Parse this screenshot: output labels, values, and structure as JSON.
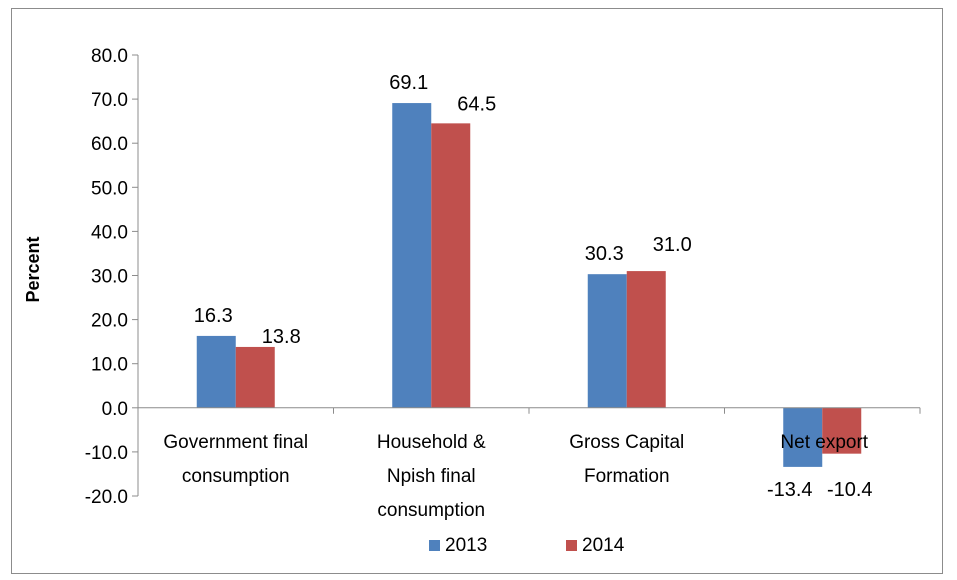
{
  "chart_data": {
    "type": "bar",
    "title": "",
    "xlabel": "",
    "ylabel": "Percent",
    "ylim": [
      -20,
      80
    ],
    "yticks": [
      "80.0",
      "70.0",
      "60.0",
      "50.0",
      "40.0",
      "30.0",
      "20.0",
      "10.0",
      "0.0",
      "-10.0",
      "-20.0"
    ],
    "categories": [
      [
        "Government final",
        "consumption"
      ],
      [
        "Household &",
        "Npish final",
        "consumption"
      ],
      [
        "Gross Capital",
        "Formation"
      ],
      [
        "Net export"
      ]
    ],
    "series": [
      {
        "name": "2013",
        "color": "#4f81bd",
        "values": [
          16.3,
          69.1,
          30.3,
          -13.4
        ],
        "labels": [
          "16.3",
          "69.1",
          "30.3",
          "-13.4"
        ]
      },
      {
        "name": "2014",
        "color": "#c0504d",
        "values": [
          13.8,
          64.5,
          31.0,
          -10.4
        ],
        "labels": [
          "13.8",
          "64.5",
          "31.0",
          "-10.4"
        ]
      }
    ],
    "grid": false,
    "legend": "bottom"
  }
}
